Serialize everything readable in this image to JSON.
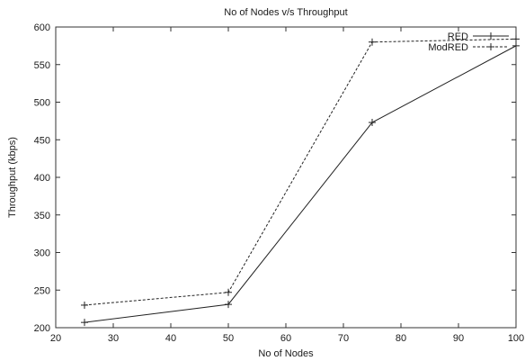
{
  "chart_data": {
    "type": "line",
    "title": "No of Nodes v/s Throughput",
    "xlabel": "No of Nodes",
    "ylabel": "Throughput (kbps)",
    "xlim": [
      20,
      100
    ],
    "ylim": [
      200,
      600
    ],
    "xticks": [
      20,
      30,
      40,
      50,
      60,
      70,
      80,
      90,
      100
    ],
    "yticks": [
      200,
      250,
      300,
      350,
      400,
      450,
      500,
      550,
      600
    ],
    "grid": false,
    "legend_position": "top-right",
    "series": [
      {
        "name": "RED",
        "style": "solid",
        "color": "#222222",
        "x": [
          25,
          50,
          75,
          100
        ],
        "y": [
          207,
          231,
          473,
          575
        ]
      },
      {
        "name": "ModRED",
        "style": "dashed",
        "color": "#222222",
        "x": [
          25,
          50,
          75,
          100
        ],
        "y": [
          230,
          247,
          580,
          584
        ]
      }
    ]
  }
}
